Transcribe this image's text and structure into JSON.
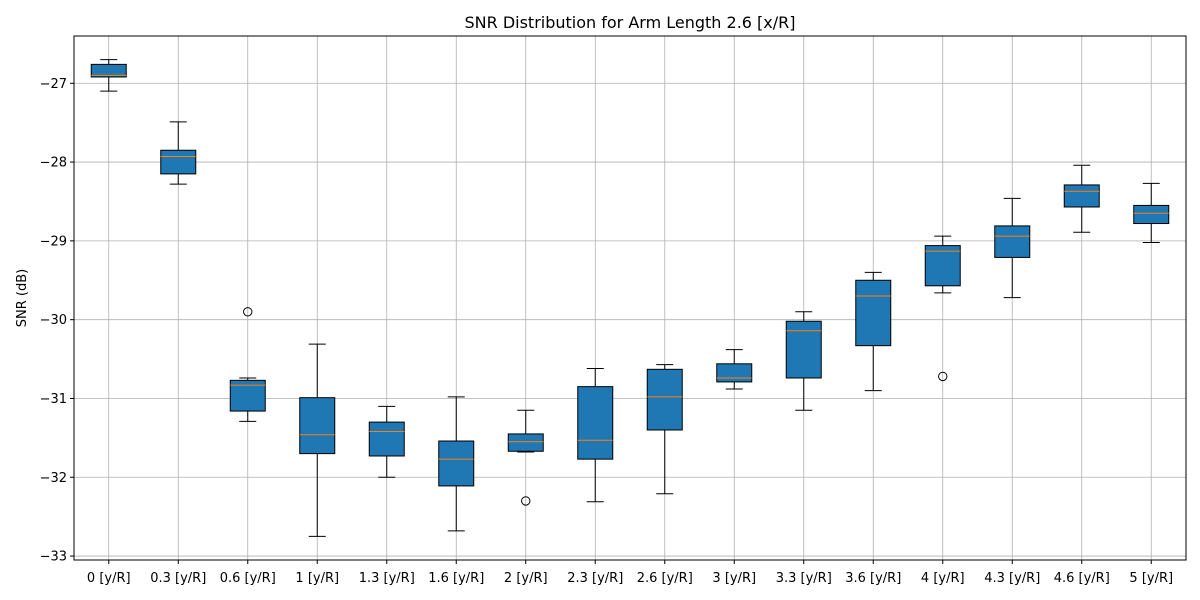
{
  "chart_data": {
    "type": "box",
    "title": "SNR Distribution for Arm Length 2.6 [x/R]",
    "xlabel": "",
    "ylabel": "SNR (dB)",
    "ylim": [
      -33.05,
      -26.4
    ],
    "yticks": [
      -27,
      -28,
      -29,
      -30,
      -31,
      -32,
      -33
    ],
    "ytick_labels": [
      "−27",
      "−28",
      "−29",
      "−30",
      "−31",
      "−32",
      "−33"
    ],
    "grid": true,
    "box_color": "#1f77b4",
    "median_color": "#ff7f0e",
    "categories": [
      "0 [y/R]",
      "0.3 [y/R]",
      "0.6 [y/R]",
      "1 [y/R]",
      "1.3 [y/R]",
      "1.6 [y/R]",
      "2 [y/R]",
      "2.3 [y/R]",
      "2.6 [y/R]",
      "3 [y/R]",
      "3.3 [y/R]",
      "3.6 [y/R]",
      "4 [y/R]",
      "4.3 [y/R]",
      "4.6 [y/R]",
      "5 [y/R]"
    ],
    "boxes": [
      {
        "whislo": -27.1,
        "q1": -26.92,
        "med": -26.9,
        "q3": -26.76,
        "whishi": -26.7,
        "fliers": []
      },
      {
        "whislo": -28.28,
        "q1": -28.15,
        "med": -27.93,
        "q3": -27.85,
        "whishi": -27.49,
        "fliers": []
      },
      {
        "whislo": -31.29,
        "q1": -31.16,
        "med": -30.83,
        "q3": -30.77,
        "whishi": -30.74,
        "fliers": [
          -29.9
        ]
      },
      {
        "whislo": -32.75,
        "q1": -31.7,
        "med": -31.46,
        "q3": -30.99,
        "whishi": -30.31,
        "fliers": []
      },
      {
        "whislo": -32.0,
        "q1": -31.73,
        "med": -31.42,
        "q3": -31.3,
        "whishi": -31.1,
        "fliers": []
      },
      {
        "whislo": -32.68,
        "q1": -32.11,
        "med": -31.77,
        "q3": -31.54,
        "whishi": -30.98,
        "fliers": []
      },
      {
        "whislo": -31.68,
        "q1": -31.67,
        "med": -31.55,
        "q3": -31.45,
        "whishi": -31.15,
        "fliers": [
          -32.3
        ]
      },
      {
        "whislo": -32.31,
        "q1": -31.77,
        "med": -31.53,
        "q3": -30.85,
        "whishi": -30.62,
        "fliers": []
      },
      {
        "whislo": -32.21,
        "q1": -31.4,
        "med": -30.98,
        "q3": -30.63,
        "whishi": -30.57,
        "fliers": []
      },
      {
        "whislo": -30.88,
        "q1": -30.79,
        "med": -30.74,
        "q3": -30.56,
        "whishi": -30.38,
        "fliers": []
      },
      {
        "whislo": -31.15,
        "q1": -30.74,
        "med": -30.14,
        "q3": -30.02,
        "whishi": -29.9,
        "fliers": []
      },
      {
        "whislo": -30.9,
        "q1": -30.33,
        "med": -29.7,
        "q3": -29.5,
        "whishi": -29.4,
        "fliers": []
      },
      {
        "whislo": -29.66,
        "q1": -29.57,
        "med": -29.13,
        "q3": -29.06,
        "whishi": -28.94,
        "fliers": [
          -30.72
        ]
      },
      {
        "whislo": -29.72,
        "q1": -29.21,
        "med": -28.94,
        "q3": -28.81,
        "whishi": -28.46,
        "fliers": []
      },
      {
        "whislo": -28.89,
        "q1": -28.57,
        "med": -28.37,
        "q3": -28.29,
        "whishi": -28.04,
        "fliers": []
      },
      {
        "whislo": -29.02,
        "q1": -28.78,
        "med": -28.65,
        "q3": -28.55,
        "whishi": -28.27,
        "fliers": []
      }
    ]
  }
}
